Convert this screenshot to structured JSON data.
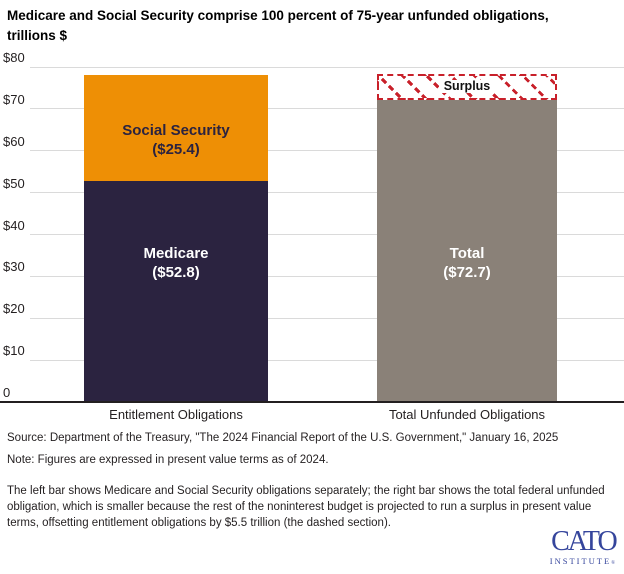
{
  "title": {
    "line1": "Medicare and Social Security comprise 100 percent of 75-year unfunded obligations,",
    "line2": "trillions $"
  },
  "footer": {
    "source": "Source: Department of the Treasury, \"The 2024 Financial Report of the U.S. Government,\" January 16, 2025",
    "note": "Note: Figures are expressed in present value terms as of 2024.",
    "caption": "The left bar shows Medicare and Social Security obligations separately; the right bar shows the total federal unfunded obligation, which is smaller because the rest of the noninterest budget is projected to run a surplus in present value terms, offsetting entitlement obligations by $5.5 trillion (the dashed section)."
  },
  "logo": {
    "name": "CATO",
    "sub": "INSTITUTE",
    "mark": "®",
    "color": "#35459c"
  },
  "chart_data": {
    "type": "bar",
    "stacked": true,
    "title": "Medicare and Social Security comprise 100 percent of 75-year unfunded obligations, trillions $",
    "units": "trillions $",
    "xlabel": "",
    "ylabel": "trillions $",
    "ylim": [
      0,
      80
    ],
    "grid": true,
    "gridline_color": "#dadada",
    "baseline_color": "#231f20",
    "legend": "none",
    "yticks": [
      {
        "value": 0,
        "label": "0"
      },
      {
        "value": 10,
        "label": "$10"
      },
      {
        "value": 20,
        "label": "$20"
      },
      {
        "value": 30,
        "label": "$30"
      },
      {
        "value": 40,
        "label": "$40"
      },
      {
        "value": 50,
        "label": "$50"
      },
      {
        "value": 60,
        "label": "$60"
      },
      {
        "value": 70,
        "label": "$70"
      },
      {
        "value": 80,
        "label": "$80"
      }
    ],
    "bars": [
      {
        "category": "Entitlement Obligations",
        "total": 78.2,
        "segments": [
          {
            "name": "Medicare",
            "value": 52.8,
            "label_line1": "Medicare",
            "label_line2": "($52.8)",
            "color": "#2b2340",
            "text_color": "#ffffff",
            "label_at_value": 33.2
          },
          {
            "name": "Social Security",
            "value": 25.4,
            "label_line1": "Social Security",
            "label_line2": "($25.4)",
            "color": "#ee8f05",
            "text_color": "#2b2340",
            "label_at_value": 62.5
          }
        ]
      },
      {
        "category": "Total Unfunded Obligations",
        "total": 72.7,
        "segments": [
          {
            "name": "Total",
            "value": 72.7,
            "label_line1": "Total",
            "label_line2": "($72.7)",
            "color": "#8a8178",
            "text_color": "#ffffff",
            "label_at_value": 33.2
          }
        ],
        "overlay": {
          "name": "Surplus",
          "value": 5.5,
          "label": "Surplus",
          "style": "red-dashed-hatch",
          "color": "#c8202a"
        }
      }
    ]
  }
}
